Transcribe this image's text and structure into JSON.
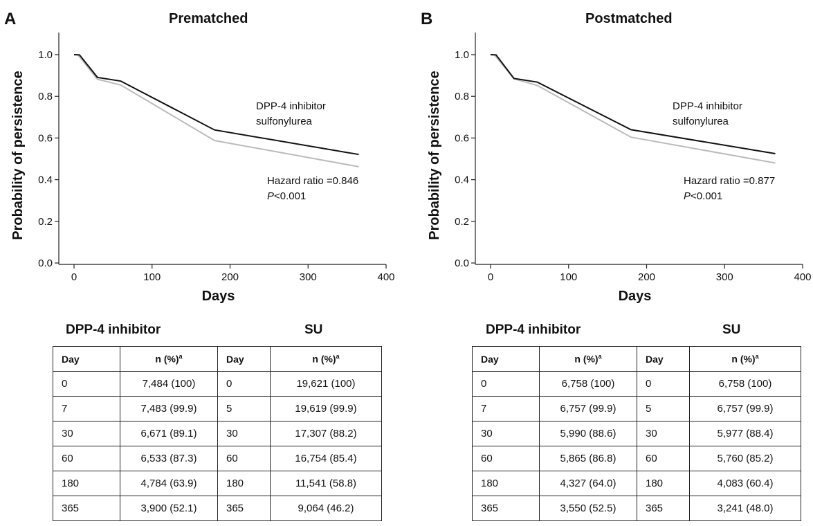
{
  "panels": [
    {
      "letter": "A",
      "title": "Prematched",
      "hazard_label": "Hazard ratio =0.846",
      "p_prefix": "P",
      "p_suffix": "<0.001",
      "table": {
        "left_header": "DPP-4 inhibitor",
        "right_header": "SU",
        "columns": [
          "Day",
          "n (%)",
          "Day",
          "n (%)"
        ],
        "footnote_marker": "a",
        "rows": [
          [
            "0",
            "7,484 (100)",
            "0",
            "19,621 (100)"
          ],
          [
            "7",
            "7,483 (99.9)",
            "5",
            "19,619 (99.9)"
          ],
          [
            "30",
            "6,671 (89.1)",
            "30",
            "17,307 (88.2)"
          ],
          [
            "60",
            "6,533 (87.3)",
            "60",
            "16,754 (85.4)"
          ],
          [
            "180",
            "4,784 (63.9)",
            "180",
            "11,541 (58.8)"
          ],
          [
            "365",
            "3,900 (52.1)",
            "365",
            "9,064 (46.2)"
          ]
        ]
      }
    },
    {
      "letter": "B",
      "title": "Postmatched",
      "hazard_label": "Hazard ratio =0.877",
      "p_prefix": "P",
      "p_suffix": "<0.001",
      "table": {
        "left_header": "DPP-4 inhibitor",
        "right_header": "SU",
        "columns": [
          "Day",
          "n (%)",
          "Day",
          "n (%)"
        ],
        "footnote_marker": "a",
        "rows": [
          [
            "0",
            "6,758 (100)",
            "0",
            "6,758 (100)"
          ],
          [
            "7",
            "6,757 (99.9)",
            "5",
            "6,757 (99.9)"
          ],
          [
            "30",
            "5,990 (88.6)",
            "30",
            "5,977 (88.4)"
          ],
          [
            "60",
            "5,865 (86.8)",
            "60",
            "5,760 (85.2)"
          ],
          [
            "180",
            "4,327 (64.0)",
            "180",
            "4,083 (60.4)"
          ],
          [
            "365",
            "3,550 (52.5)",
            "365",
            "3,241 (48.0)"
          ]
        ]
      }
    }
  ],
  "chart_data": [
    {
      "type": "line",
      "title": "Prematched",
      "xlabel": "Days",
      "ylabel": "Probability of persistence",
      "xlim": [
        0,
        400
      ],
      "ylim": [
        0,
        1.0
      ],
      "xticks": [
        "0",
        "100",
        "200",
        "300",
        "400"
      ],
      "yticks": [
        "0.0",
        "0.2",
        "0.4",
        "0.6",
        "0.8",
        "1.0"
      ],
      "legend": [
        "DPP-4 inhibitor",
        "sulfonylurea"
      ],
      "series": [
        {
          "name": "DPP-4 inhibitor",
          "color": "#111111",
          "x": [
            0,
            7,
            30,
            60,
            180,
            365
          ],
          "y": [
            1.0,
            0.999,
            0.891,
            0.873,
            0.639,
            0.521
          ]
        },
        {
          "name": "sulfonylurea",
          "color": "#bbbbbb",
          "x": [
            0,
            5,
            30,
            60,
            180,
            365
          ],
          "y": [
            1.0,
            0.999,
            0.882,
            0.854,
            0.588,
            0.462
          ]
        }
      ]
    },
    {
      "type": "line",
      "title": "Postmatched",
      "xlabel": "Days",
      "ylabel": "Probability of persistence",
      "xlim": [
        0,
        400
      ],
      "ylim": [
        0,
        1.0
      ],
      "xticks": [
        "0",
        "100",
        "200",
        "300",
        "400"
      ],
      "yticks": [
        "0.0",
        "0.2",
        "0.4",
        "0.6",
        "0.8",
        "1.0"
      ],
      "legend": [
        "DPP-4 inhibitor",
        "sulfonylurea"
      ],
      "series": [
        {
          "name": "DPP-4 inhibitor",
          "color": "#111111",
          "x": [
            0,
            7,
            30,
            60,
            180,
            365
          ],
          "y": [
            1.0,
            0.999,
            0.886,
            0.868,
            0.64,
            0.525
          ]
        },
        {
          "name": "sulfonylurea",
          "color": "#bbbbbb",
          "x": [
            0,
            5,
            30,
            60,
            180,
            365
          ],
          "y": [
            1.0,
            0.999,
            0.884,
            0.852,
            0.604,
            0.48
          ]
        }
      ]
    }
  ]
}
